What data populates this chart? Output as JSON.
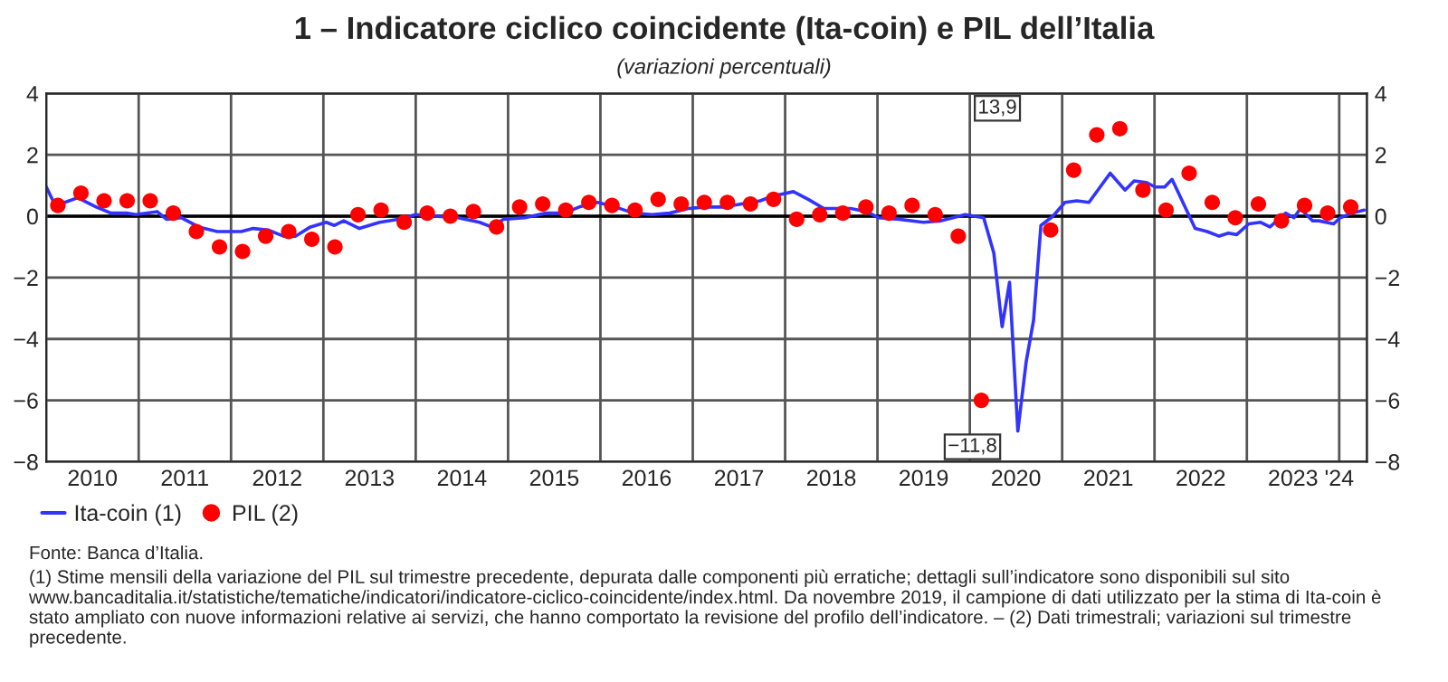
{
  "chart_data": {
    "type": "line",
    "title": "1 – Indicatore ciclico coincidente (Ita-coin) e PIL dell’Italia",
    "subtitle": "(variazioni percentuali)",
    "xlim": [
      2010,
      2024.3
    ],
    "xticks": [
      {
        "value": 2010.5,
        "label": "2010"
      },
      {
        "value": 2011.5,
        "label": "2011"
      },
      {
        "value": 2012.5,
        "label": "2012"
      },
      {
        "value": 2013.5,
        "label": "2013"
      },
      {
        "value": 2014.5,
        "label": "2014"
      },
      {
        "value": 2015.5,
        "label": "2015"
      },
      {
        "value": 2016.5,
        "label": "2016"
      },
      {
        "value": 2017.5,
        "label": "2017"
      },
      {
        "value": 2018.5,
        "label": "2018"
      },
      {
        "value": 2019.5,
        "label": "2019"
      },
      {
        "value": 2020.5,
        "label": "2020"
      },
      {
        "value": 2021.5,
        "label": "2021"
      },
      {
        "value": 2022.5,
        "label": "2022"
      },
      {
        "value": 2023.5,
        "label": "2023"
      },
      {
        "value": 2024,
        "label": "'24"
      },
      {
        "value": 2011,
        "label": null
      },
      {
        "value": 2012,
        "label": null
      },
      {
        "value": 2013,
        "label": null
      },
      {
        "value": 2014,
        "label": null
      },
      {
        "value": 2015,
        "label": null
      },
      {
        "value": 2016,
        "label": null
      },
      {
        "value": 2017,
        "label": null
      },
      {
        "value": 2018,
        "label": null
      },
      {
        "value": 2019,
        "label": null
      },
      {
        "value": 2020,
        "label": null
      },
      {
        "value": 2021,
        "label": null
      },
      {
        "value": 2022,
        "label": null
      },
      {
        "value": 2023,
        "label": null
      }
    ],
    "ylim": [
      -8,
      4
    ],
    "yticks": [
      {
        "value": -8,
        "label": "−8"
      },
      {
        "value": -6,
        "label": "−6"
      },
      {
        "value": -4,
        "label": "−4"
      },
      {
        "value": -2,
        "label": "−2"
      },
      0,
      2,
      4
    ],
    "y2lim": [
      -8,
      4
    ],
    "y2ticks": [
      {
        "value": -8,
        "label": "−8"
      },
      {
        "value": -6,
        "label": "−6"
      },
      {
        "value": -4,
        "label": "−4"
      },
      {
        "value": -2,
        "label": "−2"
      },
      0,
      2,
      4
    ],
    "grid": true,
    "legend": "bottom",
    "ref_lines": [
      {
        "axis": "y",
        "value": 0,
        "color": "#000000"
      }
    ],
    "series": [
      {
        "name": "Ita-coin (1)",
        "color": "#3333ff",
        "marker": "none",
        "line_style": "solid",
        "x": [
          2010.0,
          2010.08,
          2010.2,
          2010.34,
          2010.54,
          2010.7,
          2010.87,
          2010.97,
          2011.2,
          2011.3,
          2011.46,
          2011.65,
          2011.85,
          2012.11,
          2012.24,
          2012.4,
          2012.57,
          2012.7,
          2012.86,
          2013.03,
          2013.12,
          2013.22,
          2013.39,
          2013.61,
          2013.81,
          2014.0,
          2014.2,
          2014.46,
          2014.69,
          2014.82,
          2014.95,
          2015.18,
          2015.41,
          2015.61,
          2015.77,
          2015.97,
          2016.16,
          2016.36,
          2016.56,
          2016.75,
          2016.95,
          2017.14,
          2017.34,
          2017.73,
          2017.86,
          2018.09,
          2018.25,
          2018.42,
          2018.71,
          2018.88,
          2019.01,
          2019.23,
          2019.5,
          2019.69,
          2019.95,
          2020.15,
          2020.26,
          2020.35,
          2020.43,
          2020.52,
          2020.61,
          2020.69,
          2020.77,
          2020.9,
          2021.03,
          2021.16,
          2021.29,
          2021.52,
          2021.68,
          2021.78,
          2021.91,
          2022.01,
          2022.11,
          2022.19,
          2022.44,
          2022.57,
          2022.7,
          2022.8,
          2022.89,
          2023.02,
          2023.15,
          2023.25,
          2023.42,
          2023.51,
          2023.58,
          2023.71,
          2023.78,
          2023.94,
          2024.01,
          2024.14,
          2024.27
        ],
        "values": [
          0.95,
          0.45,
          0.45,
          0.6,
          0.3,
          0.1,
          0.1,
          0.05,
          0.15,
          -0.1,
          -0.05,
          -0.35,
          -0.5,
          -0.5,
          -0.4,
          -0.45,
          -0.65,
          -0.65,
          -0.35,
          -0.2,
          -0.3,
          -0.15,
          -0.4,
          -0.2,
          -0.1,
          0.05,
          0.0,
          -0.05,
          -0.2,
          -0.35,
          -0.1,
          -0.05,
          0.1,
          0.1,
          0.3,
          0.45,
          0.3,
          0.1,
          0.05,
          0.1,
          0.25,
          0.3,
          0.3,
          0.5,
          0.65,
          0.8,
          0.55,
          0.25,
          0.25,
          0.15,
          -0.05,
          -0.1,
          -0.2,
          -0.15,
          0.05,
          -0.05,
          -1.2,
          -3.6,
          -2.15,
          -7.0,
          -4.75,
          -3.4,
          -0.3,
          0.0,
          0.45,
          0.5,
          0.45,
          1.4,
          0.85,
          1.15,
          1.1,
          0.95,
          0.95,
          1.2,
          -0.4,
          -0.5,
          -0.65,
          -0.55,
          -0.6,
          -0.25,
          -0.2,
          -0.35,
          0.1,
          -0.05,
          0.25,
          -0.15,
          -0.15,
          -0.25,
          -0.05,
          0.1,
          0.2
        ]
      },
      {
        "name": "PIL (2)",
        "type": "scatter",
        "color": "#ff0000",
        "marker": "circle",
        "x": [
          2010.125,
          2010.375,
          2010.625,
          2010.875,
          2011.125,
          2011.375,
          2011.625,
          2011.875,
          2012.125,
          2012.375,
          2012.625,
          2012.875,
          2013.125,
          2013.375,
          2013.625,
          2013.875,
          2014.125,
          2014.375,
          2014.625,
          2014.875,
          2015.125,
          2015.375,
          2015.625,
          2015.875,
          2016.125,
          2016.375,
          2016.625,
          2016.875,
          2017.125,
          2017.375,
          2017.625,
          2017.875,
          2018.125,
          2018.375,
          2018.625,
          2018.875,
          2019.125,
          2019.375,
          2019.625,
          2019.875,
          2020.125,
          2020.375,
          2020.625,
          2020.875,
          2021.125,
          2021.375,
          2021.625,
          2021.875,
          2022.125,
          2022.375,
          2022.625,
          2022.875,
          2023.125,
          2023.375,
          2023.625,
          2023.875,
          2024.125
        ],
        "values": [
          0.35,
          0.75,
          0.5,
          0.5,
          0.5,
          0.1,
          -0.5,
          -1.0,
          -1.15,
          -0.65,
          -0.5,
          -0.75,
          -1.0,
          0.05,
          0.2,
          -0.2,
          0.1,
          0.0,
          0.15,
          -0.35,
          0.3,
          0.4,
          0.2,
          0.45,
          0.35,
          0.2,
          0.55,
          0.4,
          0.45,
          0.45,
          0.4,
          0.55,
          -0.1,
          0.05,
          0.1,
          0.3,
          0.1,
          0.35,
          0.05,
          -0.65,
          -6.0,
          null,
          null,
          -0.45,
          1.5,
          2.65,
          2.85,
          0.85,
          0.2,
          1.4,
          0.45,
          -0.05,
          0.4,
          -0.15,
          0.35,
          0.1,
          0.3
        ]
      }
    ],
    "annotations": [
      "13,9",
      "−11,8",
      "Fonte: Banca d’Italia.",
      "(1) Stime mensili della variazione del PIL sul trimestre precedente, depurata dalle componenti più erratiche; dettagli sull’indicatore sono disponibili sul sito www.bancaditalia.it/statistiche/tematiche/indicatori/indicatore-ciclico-coincidente/index.html. Da novembre 2019, il campione di dati utilizzato per la stima di Ita-coin è stato ampliato con nuove informazioni relative ai servizi, che hanno comportato la revisione del profilo dell’indicatore. – (2) Dati trimestrali; variazioni sul trimestre precedente."
    ]
  }
}
